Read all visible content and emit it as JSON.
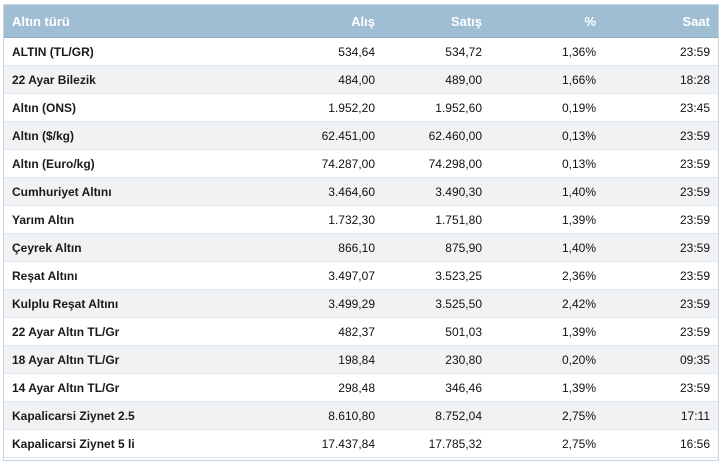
{
  "table": {
    "headers": {
      "name": "Altın türü",
      "buy": "Alış",
      "sell": "Satış",
      "pct": "%",
      "time": "Saat"
    },
    "rows": [
      {
        "name": "ALTIN (TL/GR)",
        "buy": "534,64",
        "sell": "534,72",
        "pct": "1,36%",
        "time": "23:59"
      },
      {
        "name": "22 Ayar Bilezik",
        "buy": "484,00",
        "sell": "489,00",
        "pct": "1,66%",
        "time": "18:28"
      },
      {
        "name": "Altın (ONS)",
        "buy": "1.952,20",
        "sell": "1.952,60",
        "pct": "0,19%",
        "time": "23:45"
      },
      {
        "name": "Altın ($/kg)",
        "buy": "62.451,00",
        "sell": "62.460,00",
        "pct": "0,13%",
        "time": "23:59"
      },
      {
        "name": "Altın (Euro/kg)",
        "buy": "74.287,00",
        "sell": "74.298,00",
        "pct": "0,13%",
        "time": "23:59"
      },
      {
        "name": "Cumhuriyet Altını",
        "buy": "3.464,60",
        "sell": "3.490,30",
        "pct": "1,40%",
        "time": "23:59"
      },
      {
        "name": "Yarım Altın",
        "buy": "1.732,30",
        "sell": "1.751,80",
        "pct": "1,39%",
        "time": "23:59"
      },
      {
        "name": "Çeyrek Altın",
        "buy": "866,10",
        "sell": "875,90",
        "pct": "1,40%",
        "time": "23:59"
      },
      {
        "name": "Reşat Altını",
        "buy": "3.497,07",
        "sell": "3.523,25",
        "pct": "2,36%",
        "time": "23:59"
      },
      {
        "name": "Kulplu Reşat Altını",
        "buy": "3.499,29",
        "sell": "3.525,50",
        "pct": "2,42%",
        "time": "23:59"
      },
      {
        "name": "22 Ayar Altın TL/Gr",
        "buy": "482,37",
        "sell": "501,03",
        "pct": "1,39%",
        "time": "23:59"
      },
      {
        "name": "18 Ayar Altın TL/Gr",
        "buy": "198,84",
        "sell": "230,80",
        "pct": "0,20%",
        "time": "09:35"
      },
      {
        "name": "14 Ayar Altın TL/Gr",
        "buy": "298,48",
        "sell": "346,46",
        "pct": "1,39%",
        "time": "23:59"
      },
      {
        "name": "Kapalicarsi Ziynet 2.5",
        "buy": "8.610,80",
        "sell": "8.752,04",
        "pct": "2,75%",
        "time": "17:11"
      },
      {
        "name": "Kapalicarsi Ziynet 5 li",
        "buy": "17.437,84",
        "sell": "17.785,32",
        "pct": "2,75%",
        "time": "16:56"
      }
    ]
  }
}
